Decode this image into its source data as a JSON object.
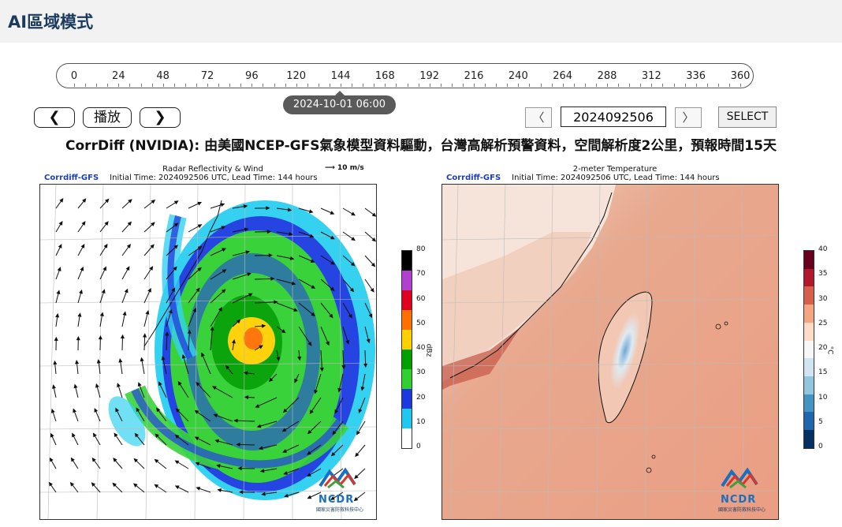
{
  "header": {
    "title": "AI區域模式"
  },
  "timeline": {
    "ticks": [
      "0",
      "24",
      "48",
      "72",
      "96",
      "120",
      "144",
      "168",
      "192",
      "216",
      "240",
      "264",
      "288",
      "312",
      "336",
      "360"
    ],
    "current_time": "2024-10-01 06:00",
    "selected_hour": 144
  },
  "controls": {
    "prev_label": "❮",
    "play_label": "播放",
    "next_label": "❯",
    "date_prev_label": "〈",
    "date_next_label": "〉",
    "date_value": "2024092506",
    "select_label": "SELECT"
  },
  "caption": "CorrDiff (NVIDIA): 由美國NCEP-GFS氣象模型資料驅動，台灣高解析預警資料，空間解析度2公里，預報時間15天",
  "left_map": {
    "title": "Radar Reflectivity & Wind",
    "model": "Corrdiff-GFS",
    "subtitle": "Initial Time: 2024092506 UTC, Lead Time: 144 hours",
    "wind_scale": "10 m/s",
    "colorbar": {
      "unit": "dBz",
      "labels": [
        "80",
        "70",
        "60",
        "50",
        "40",
        "30",
        "20",
        "10",
        "0"
      ],
      "colors": [
        "#000000",
        "#b040d0",
        "#e00020",
        "#ff7000",
        "#ffd000",
        "#00a000",
        "#30d030",
        "#1a3ae0",
        "#20c8f0",
        "#ffffff"
      ]
    }
  },
  "right_map": {
    "title": "2-meter Temperature",
    "model": "Corrdiff-GFS",
    "subtitle": "Initial Time: 2024092506 UTC, Lead Time: 144 hours",
    "colorbar": {
      "unit": "°C",
      "labels": [
        "40",
        "35",
        "30",
        "25",
        "20",
        "15",
        "10",
        "5",
        "0"
      ],
      "colors": [
        "#67001f",
        "#b2182b",
        "#d6604d",
        "#f4a582",
        "#fddbc7",
        "#f7f7f7",
        "#d1e5f0",
        "#92c5de",
        "#4393c3",
        "#2166ac",
        "#053061"
      ]
    }
  },
  "logo": {
    "text": "NCDR",
    "subtext": "國家災害防救科技中心"
  }
}
